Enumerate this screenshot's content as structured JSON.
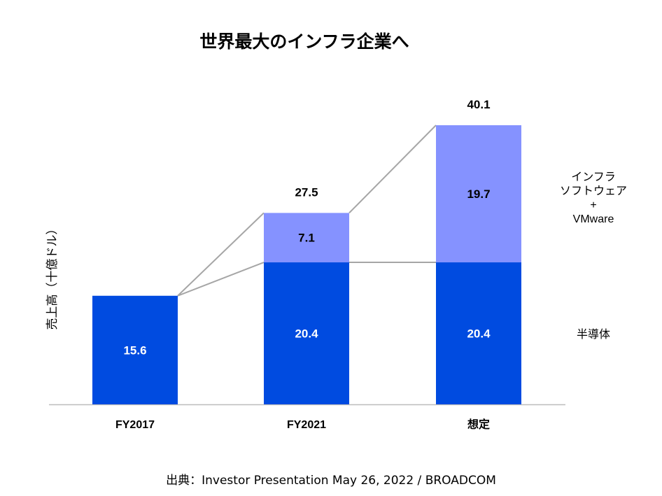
{
  "chart_data": {
    "type": "bar",
    "stacked": true,
    "title": "世界最大のインフラ企業へ",
    "ylabel": "売上高（十億ドル）",
    "xlabel": "",
    "categories": [
      "FY2017",
      "FY2021",
      "想定"
    ],
    "series": [
      {
        "name": "半導体",
        "values": [
          15.6,
          20.4,
          20.4
        ],
        "color": "#004be0",
        "label_color": "#ffffff"
      },
      {
        "name": "インフラ\nソフトウェア\n+\nVMware",
        "values": [
          0,
          7.1,
          19.7
        ],
        "color": "#8592ff",
        "label_color": "#000000"
      }
    ],
    "totals": [
      null,
      27.5,
      40.1
    ],
    "ylim": [
      0,
      42
    ],
    "grid": false,
    "legend": "right, aligned to segments",
    "connector_lines": true
  },
  "source": "出典：Investor Presentation May 26, 2022 / BROADCOM"
}
